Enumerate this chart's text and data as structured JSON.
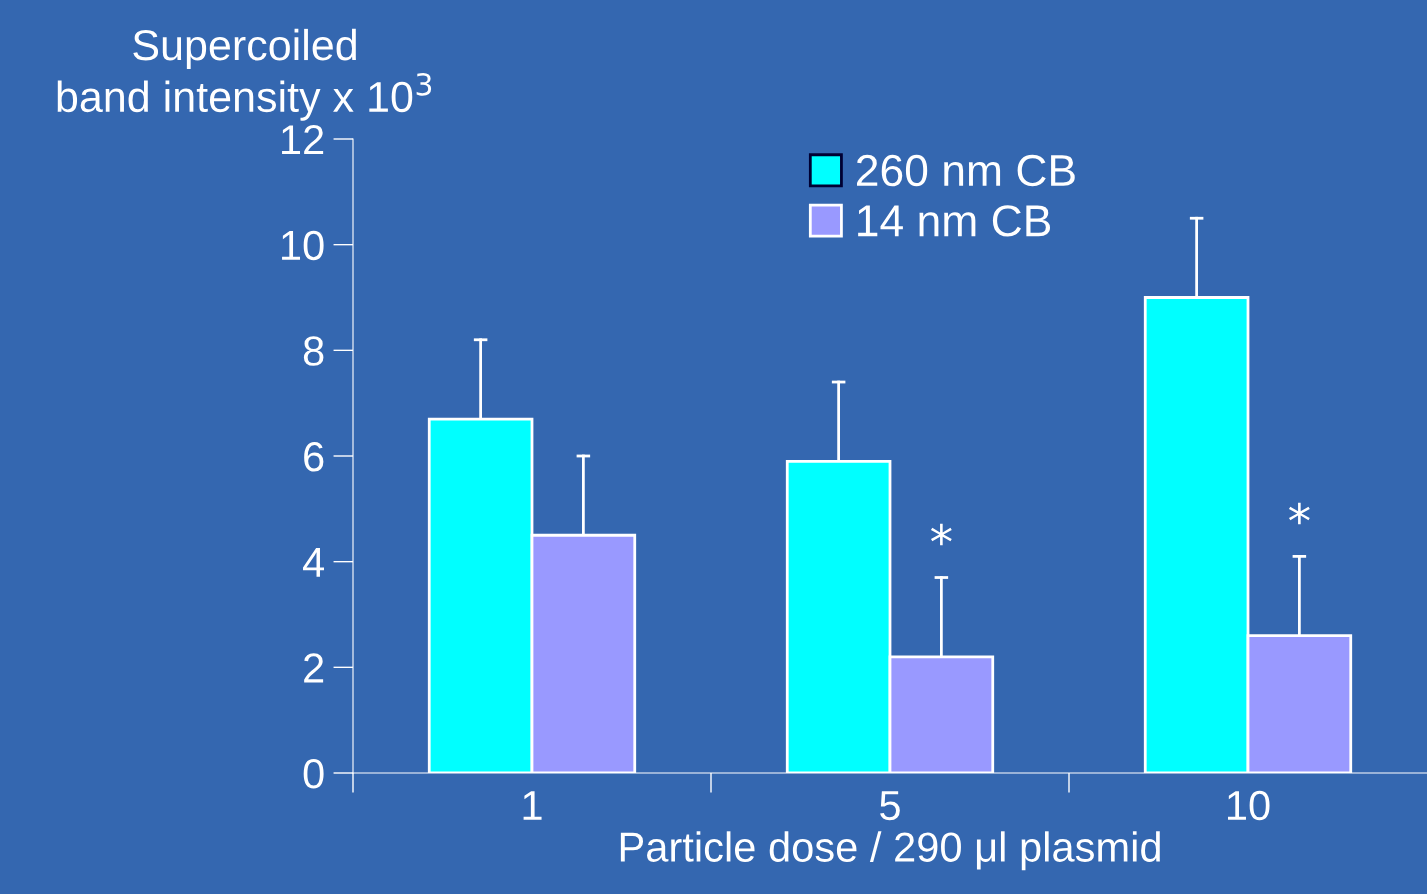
{
  "chart_data": {
    "type": "bar",
    "ylabel": "Supercoiled\nband intensity x 10$^{3}$",
    "xlabel": "Particle dose / 290 μl plasmid",
    "categories": [
      "1",
      "5",
      "10"
    ],
    "series": [
      {
        "name": "260 nm CB",
        "color": "#00ffff",
        "values": [
          6.7,
          5.9,
          9.0
        ],
        "errors": [
          [
            6.7,
            8.2
          ],
          [
            5.9,
            7.4
          ],
          [
            9.0,
            10.5
          ]
        ]
      },
      {
        "name": "14 nm CB",
        "color": "#9999ff",
        "values": [
          4.5,
          2.2,
          2.6
        ],
        "errors": [
          [
            4.5,
            6.0
          ],
          [
            2.2,
            3.7
          ],
          [
            2.6,
            4.1
          ]
        ]
      }
    ],
    "ylim": [
      0,
      12
    ],
    "yticks": [
      0,
      2,
      4,
      6,
      8,
      10,
      12
    ],
    "annotations": [
      {
        "text": "*",
        "x": "5",
        "y": 4.3
      },
      {
        "text": "*",
        "x": "10",
        "y": 4.7
      }
    ],
    "legend": "top",
    "grid": false
  }
}
